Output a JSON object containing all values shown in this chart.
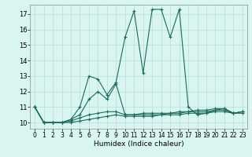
{
  "xlabel": "Humidex (Indice chaleur)",
  "bg_color": "#d8f5f0",
  "grid_color": "#b8ddd8",
  "line_color": "#1a6b5a",
  "xlim": [
    -0.5,
    23.5
  ],
  "ylim": [
    9.6,
    17.6
  ],
  "xticks": [
    0,
    1,
    2,
    3,
    4,
    5,
    6,
    7,
    8,
    9,
    10,
    11,
    12,
    13,
    14,
    15,
    16,
    17,
    18,
    19,
    20,
    21,
    22,
    23
  ],
  "yticks": [
    10,
    11,
    12,
    13,
    14,
    15,
    16,
    17
  ],
  "series": [
    {
      "x": [
        0,
        1,
        2,
        3,
        4,
        5,
        6,
        7,
        8,
        9,
        10,
        11,
        12,
        13,
        14,
        15,
        16,
        17,
        18,
        19,
        20,
        21,
        22,
        23
      ],
      "y": [
        11,
        10,
        10,
        10,
        10.2,
        11,
        13,
        12.8,
        11.8,
        12.6,
        15.5,
        17.2,
        13.2,
        17.3,
        17.3,
        15.5,
        17.3,
        11,
        10.5,
        10.6,
        10.8,
        10.9,
        10.6,
        10.7
      ]
    },
    {
      "x": [
        0,
        1,
        2,
        3,
        4,
        5,
        6,
        7,
        8,
        9,
        10,
        11,
        12,
        13,
        14,
        15,
        16,
        17,
        18,
        19,
        20,
        21,
        22,
        23
      ],
      "y": [
        11,
        10,
        10,
        10,
        10.2,
        10.5,
        11.5,
        12,
        11.5,
        12.5,
        10.5,
        10.5,
        10.6,
        10.6,
        10.6,
        10.6,
        10.7,
        10.7,
        10.8,
        10.8,
        10.9,
        10.9,
        10.6,
        10.7
      ]
    },
    {
      "x": [
        0,
        1,
        2,
        3,
        4,
        5,
        6,
        7,
        8,
        9,
        10,
        11,
        12,
        13,
        14,
        15,
        16,
        17,
        18,
        19,
        20,
        21,
        22,
        23
      ],
      "y": [
        11,
        10,
        10,
        10,
        10.1,
        10.3,
        10.5,
        10.6,
        10.7,
        10.7,
        10.5,
        10.5,
        10.5,
        10.5,
        10.5,
        10.6,
        10.6,
        10.7,
        10.7,
        10.7,
        10.8,
        10.8,
        10.6,
        10.7
      ]
    },
    {
      "x": [
        0,
        1,
        2,
        3,
        4,
        5,
        6,
        7,
        8,
        9,
        10,
        11,
        12,
        13,
        14,
        15,
        16,
        17,
        18,
        19,
        20,
        21,
        22,
        23
      ],
      "y": [
        11,
        10,
        10,
        10,
        10.0,
        10.1,
        10.2,
        10.3,
        10.4,
        10.5,
        10.4,
        10.4,
        10.4,
        10.4,
        10.5,
        10.5,
        10.5,
        10.6,
        10.6,
        10.6,
        10.7,
        10.7,
        10.6,
        10.6
      ]
    }
  ]
}
